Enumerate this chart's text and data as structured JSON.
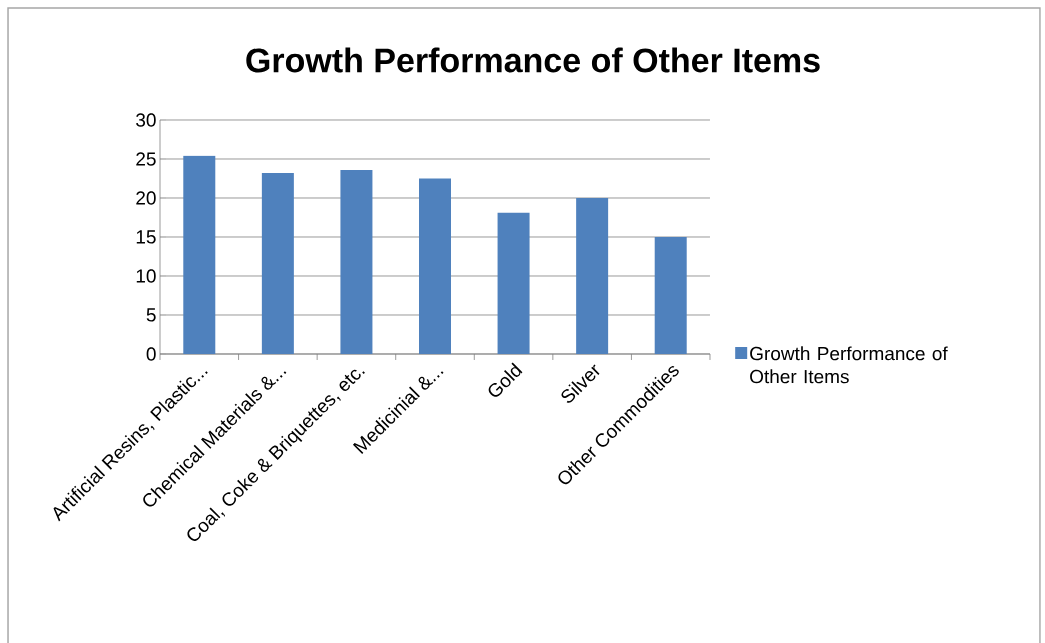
{
  "chart_data": {
    "type": "bar",
    "title": "Growth Performance of Other Items",
    "categories": [
      "Artificial Resins, Plastic...",
      "Chemical Materials &...",
      "Coal, Coke & Briquettes, etc.",
      "Medicinial &...",
      "Gold",
      "Silver",
      "Other Commodities"
    ],
    "series": [
      {
        "name": "Growth Performance of Other Items",
        "color": "#4f81bd",
        "values": [
          25.4,
          23.2,
          23.6,
          22.5,
          18.1,
          20.0,
          15.0
        ]
      }
    ],
    "ylim": [
      0,
      30
    ],
    "yticks": [
      0,
      5,
      10,
      15,
      20,
      25,
      30
    ],
    "grid": "y",
    "legend": "right"
  }
}
